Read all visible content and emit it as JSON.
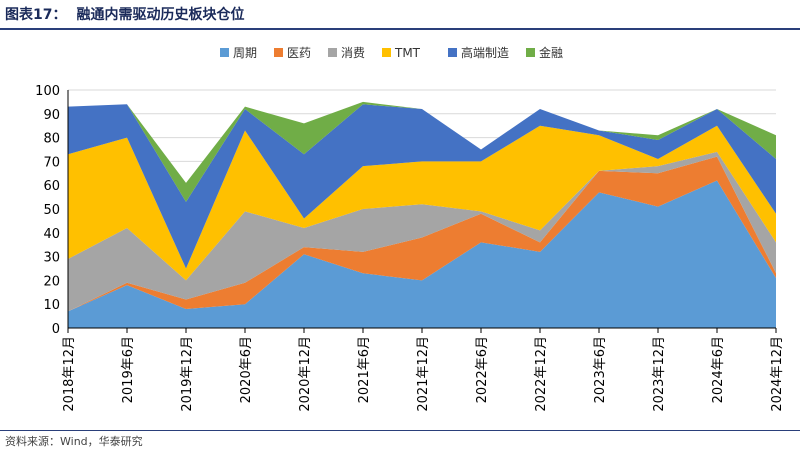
{
  "figure": {
    "label": "图表17：",
    "title": "融通内需驱动历史板块仓位",
    "source": "资料来源：Wind，华泰研究"
  },
  "chart_data": {
    "type": "area",
    "stacked": true,
    "legend_position": "top",
    "x": [
      "2018年12月",
      "2019年6月",
      "2019年12月",
      "2020年6月",
      "2020年12月",
      "2021年6月",
      "2021年12月",
      "2022年6月",
      "2022年12月",
      "2023年6月",
      "2023年12月",
      "2024年6月",
      "2024年12月"
    ],
    "ylim": [
      0,
      100
    ],
    "yticks": [
      0,
      10,
      20,
      30,
      40,
      50,
      60,
      70,
      80,
      90,
      100
    ],
    "series": [
      {
        "name": "周期",
        "color": "#5b9bd5",
        "values": [
          7,
          18,
          8,
          10,
          31,
          23,
          20,
          36,
          32,
          57,
          51,
          62,
          21
        ]
      },
      {
        "name": "医药",
        "color": "#ed7d31",
        "values": [
          0,
          1,
          4,
          9,
          3,
          9,
          18,
          12,
          4,
          9,
          14,
          10,
          2
        ]
      },
      {
        "name": "消费",
        "color": "#a5a5a5",
        "values": [
          22,
          23,
          8,
          30,
          8,
          18,
          14,
          1,
          5,
          0,
          3,
          2,
          13
        ]
      },
      {
        "name": "TMT",
        "color": "#ffc000",
        "values": [
          44,
          38,
          5,
          34,
          4,
          18,
          18,
          21,
          44,
          15,
          3,
          11,
          12
        ]
      },
      {
        "name": "高端制造",
        "color": "#4472c4",
        "values": [
          20,
          14,
          28,
          9,
          27,
          26,
          22,
          5,
          7,
          2,
          8,
          7,
          23
        ]
      },
      {
        "name": "金融",
        "color": "#70ad47",
        "values": [
          0,
          0,
          8,
          1,
          13,
          1,
          0,
          0,
          0,
          0,
          2,
          0,
          10
        ]
      }
    ]
  }
}
